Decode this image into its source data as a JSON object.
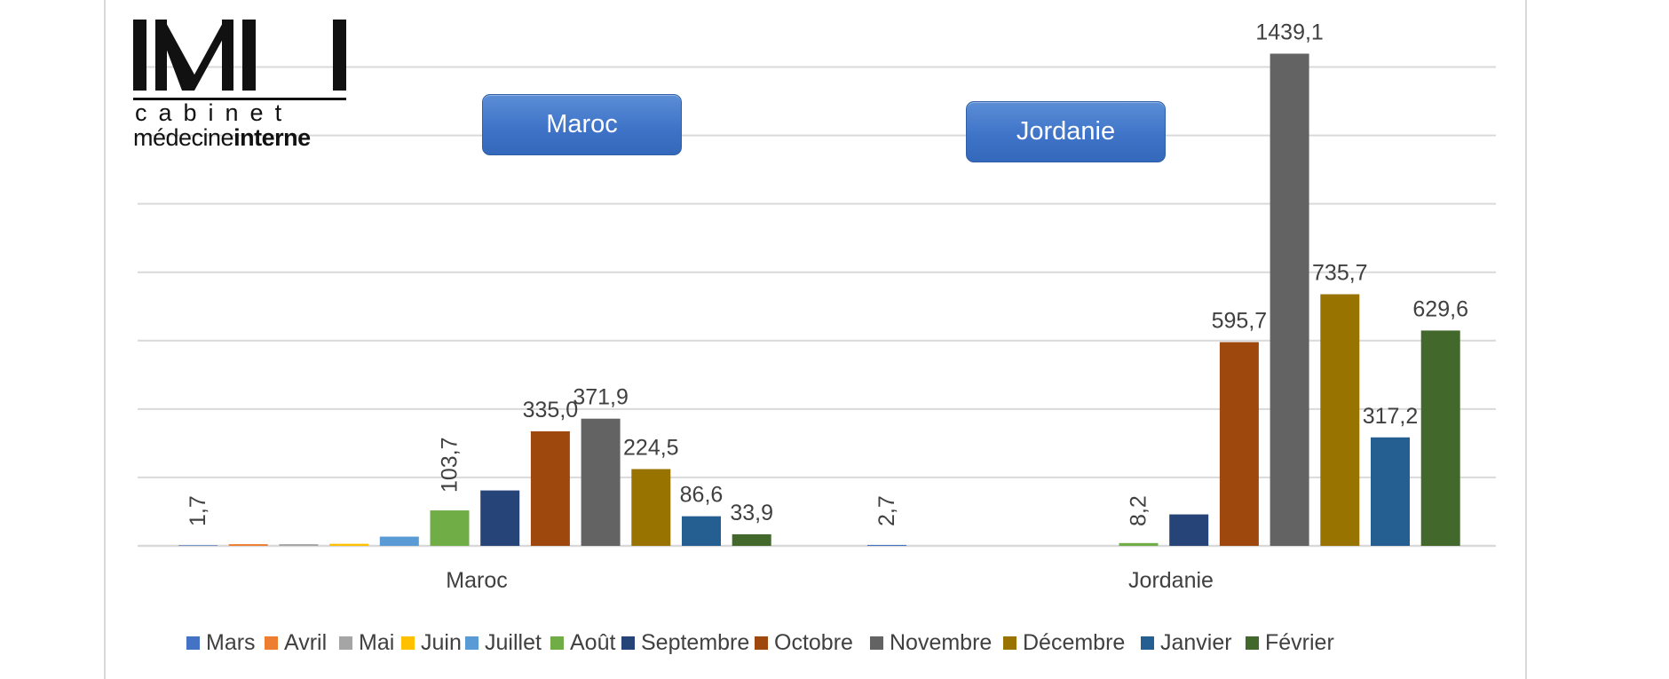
{
  "logo": {
    "mark": "MII",
    "line1": "cabinet",
    "line2_regular": "médecine",
    "line2_bold": "interne"
  },
  "callouts": [
    {
      "text": "Maroc"
    },
    {
      "text": "Jordanie"
    }
  ],
  "chart_data": {
    "type": "bar",
    "title": "",
    "xlabel": "",
    "ylabel": "",
    "ylim": [
      0,
      1500
    ],
    "grid": true,
    "legend_position": "bottom",
    "categories": [
      "Maroc",
      "Jordanie"
    ],
    "series": [
      {
        "name": "Mars",
        "color": "#4472c4",
        "values": [
          1.7,
          2.7
        ],
        "labels": [
          "1,7",
          "2,7"
        ]
      },
      {
        "name": "Avril",
        "color": "#ed7d31",
        "values": [
          5,
          0
        ],
        "labels": [
          "",
          ""
        ]
      },
      {
        "name": "Mai",
        "color": "#a5a5a5",
        "values": [
          5,
          0
        ],
        "labels": [
          "",
          ""
        ]
      },
      {
        "name": "Juin",
        "color": "#ffc000",
        "values": [
          6,
          0
        ],
        "labels": [
          "",
          ""
        ]
      },
      {
        "name": "Juillet",
        "color": "#5b9bd5",
        "values": [
          27,
          0
        ],
        "labels": [
          "",
          ""
        ]
      },
      {
        "name": "Août",
        "color": "#70ad47",
        "values": [
          103.7,
          8.2
        ],
        "labels": [
          "103,7",
          "8,2"
        ]
      },
      {
        "name": "Septembre",
        "color": "#264478",
        "values": [
          162,
          92
        ],
        "labels": [
          "",
          ""
        ]
      },
      {
        "name": "Octobre",
        "color": "#9e480e",
        "values": [
          335.0,
          595.7
        ],
        "labels": [
          "335,0",
          "595,7"
        ]
      },
      {
        "name": "Novembre",
        "color": "#636363",
        "values": [
          371.9,
          1439.1
        ],
        "labels": [
          "371,9",
          "1439,1"
        ]
      },
      {
        "name": "Décembre",
        "color": "#997300",
        "values": [
          224.5,
          735.7
        ],
        "labels": [
          "224,5",
          "735,7"
        ]
      },
      {
        "name": "Janvier",
        "color": "#255e91",
        "values": [
          86.6,
          317.2
        ],
        "labels": [
          "86,6",
          "317,2"
        ]
      },
      {
        "name": "Février",
        "color": "#43682b",
        "values": [
          33.9,
          629.6
        ],
        "labels": [
          "33,9",
          "629,6"
        ]
      }
    ]
  }
}
